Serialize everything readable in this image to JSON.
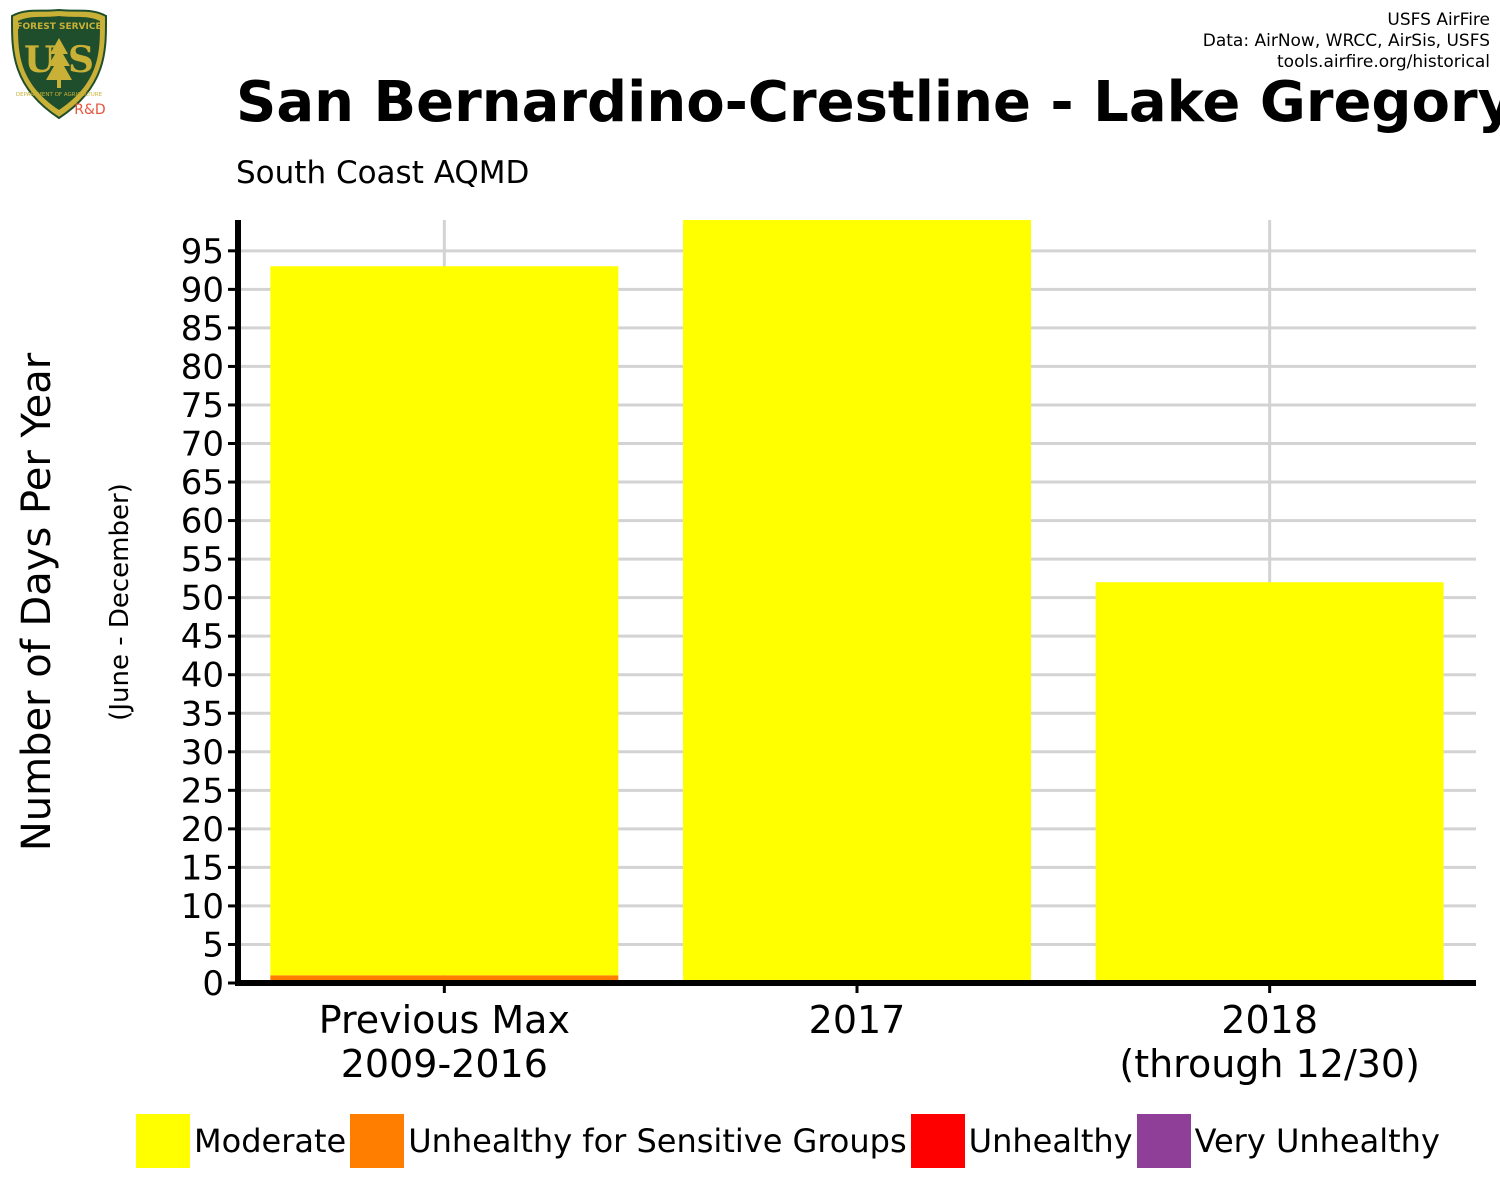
{
  "header": {
    "credits": [
      "USFS AirFire",
      "Data: AirNow, WRCC, AirSis, USFS",
      "tools.airfire.org/historical"
    ],
    "logo": {
      "arc_text": "FOREST SERVICE",
      "letters": "U S",
      "bottom_text": "DEPARTMENT OF AGRICULTURE",
      "tag": "R&D"
    }
  },
  "colors": {
    "Moderate": "#ffff00",
    "Unhealthy for Sensitive Groups": "#ff7e00",
    "Unhealthy": "#ff0000",
    "Very Unhealthy": "#8f3f97",
    "grid": "#d3d3d3",
    "logo_green": "#1f4e2c",
    "logo_gold": "#c9b037",
    "tag": "#e8533c"
  },
  "chart_data": {
    "type": "bar",
    "stacked": true,
    "title": "San Bernardino-Crestline - Lake Gregory",
    "subtitle": "South Coast AQMD",
    "ylabel": "Number of Days Per Year",
    "ylabel_sub": "(June - December)",
    "xlabel": "",
    "categories": [
      [
        "Previous Max",
        "2009-2016"
      ],
      [
        "2017"
      ],
      [
        "2018",
        "(through 12/30)"
      ]
    ],
    "series": [
      {
        "name": "Moderate",
        "values": [
          92,
          99,
          52
        ]
      },
      {
        "name": "Unhealthy for Sensitive Groups",
        "values": [
          1,
          0,
          0
        ]
      },
      {
        "name": "Unhealthy",
        "values": [
          0,
          0,
          0
        ]
      },
      {
        "name": "Very Unhealthy",
        "values": [
          0,
          0,
          0
        ]
      }
    ],
    "yticks": [
      0,
      5,
      10,
      15,
      20,
      25,
      30,
      35,
      40,
      45,
      50,
      55,
      60,
      65,
      70,
      75,
      80,
      85,
      90,
      95
    ],
    "ylim": [
      0,
      99
    ],
    "grid": true,
    "legend": "bottom"
  }
}
